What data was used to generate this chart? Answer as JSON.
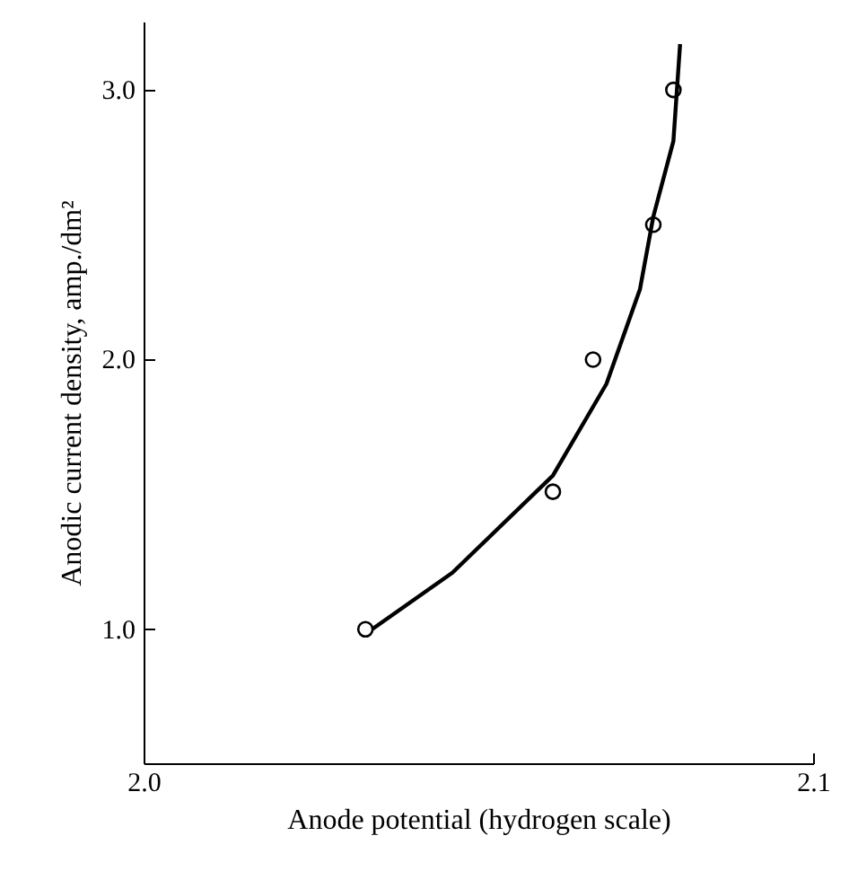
{
  "chart_data": {
    "type": "scatter",
    "xlabel": "Anode potential (hydrogen scale)",
    "ylabel": "Anodic current density, amp./dm²",
    "xlim": [
      2.0,
      2.1
    ],
    "ylim": [
      0.5,
      3.25
    ],
    "xticks": [
      {
        "value": 2.0,
        "label": "2.0"
      },
      {
        "value": 2.1,
        "label": "2.1"
      }
    ],
    "yticks": [
      {
        "value": 1,
        "label": "1.0"
      },
      {
        "value": 2,
        "label": "2.0"
      },
      {
        "value": 3,
        "label": "3.0"
      }
    ],
    "grid": false,
    "marker": "circle",
    "series": [
      {
        "color": "#000000",
        "x": [
          2.033,
          2.061,
          2.067,
          2.076,
          2.079
        ],
        "values": [
          1.0,
          1.51,
          2.0,
          2.5,
          3.0
        ]
      },
      {
        "type": "line",
        "color": "#000000",
        "marker": "none",
        "x": [
          2.034,
          2.046,
          2.061,
          2.069,
          2.074,
          2.076,
          2.079,
          2.08
        ],
        "values": [
          1.0,
          1.21,
          1.57,
          1.91,
          2.26,
          2.53,
          2.81,
          3.17
        ]
      }
    ]
  }
}
